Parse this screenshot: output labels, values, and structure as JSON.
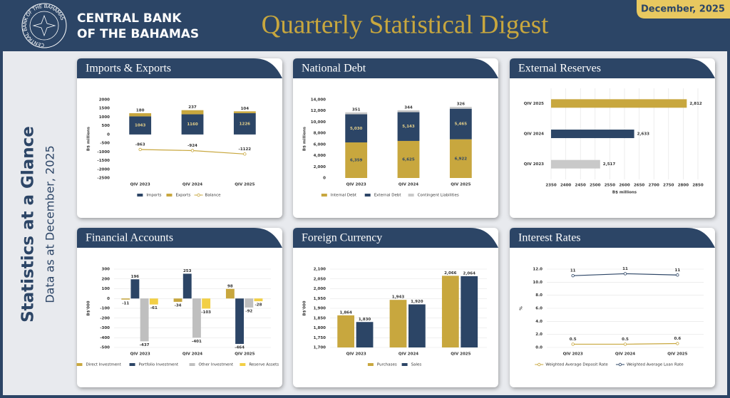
{
  "header": {
    "bank_line1": "CENTRAL BANK",
    "bank_line2": "OF THE BAHAMAS",
    "seal_text": "CENTRAL BANK OF THE BAHAMAS",
    "title": "Quarterly Statistical Digest",
    "date": "December, 2025"
  },
  "side": {
    "title": "Statistics at a Glance",
    "subtitle": "Data as at December, 2025"
  },
  "chart_data": [
    {
      "type": "bar",
      "title": "Imports & Exports",
      "stacked": true,
      "grid": false,
      "ylabel": "B$ millions",
      "categories": [
        "QIV 2023",
        "QIV 2024",
        "QIV 2025"
      ],
      "series": [
        {
          "name": "Imports",
          "color": "#2c4566",
          "values": [
            1043,
            1160,
            1226
          ]
        },
        {
          "name": "Exports",
          "color": "#c8a73e",
          "values": [
            180,
            237,
            104
          ]
        },
        {
          "name": "Balance",
          "type": "line",
          "color": "#c8a73e",
          "values": [
            -863,
            -924,
            -1122
          ]
        }
      ],
      "ylim": [
        -2500,
        2000
      ],
      "yticks": [
        -2500,
        -2000,
        -1500,
        -1000,
        -500,
        0,
        500,
        1000,
        1500,
        2000
      ]
    },
    {
      "type": "bar",
      "title": "National Debt",
      "stacked": true,
      "grid": false,
      "ylabel": "B$ millions",
      "categories": [
        "QIV 2023",
        "QIV 2024",
        "QIV 2025"
      ],
      "series": [
        {
          "name": "Internal Debt",
          "color": "#c8a73e",
          "values": [
            6359,
            6625,
            6922
          ],
          "value_labels": [
            "6,359",
            "6,625",
            "6,922"
          ]
        },
        {
          "name": "External Debt",
          "color": "#2c4566",
          "values": [
            5030,
            5143,
            5465
          ],
          "value_labels": [
            "5,030",
            "5,143",
            "5,465"
          ]
        },
        {
          "name": "Contingent Liabilities",
          "color": "#c9c9c9",
          "values": [
            351,
            344,
            326
          ]
        }
      ],
      "ylim": [
        0,
        14000
      ],
      "yticks": [
        0,
        {
          "value": 2000,
          "label": "2,000"
        },
        {
          "value": 4000,
          "label": "4,000"
        },
        {
          "value": 6000,
          "label": "6,000"
        },
        {
          "value": 8000,
          "label": "8,000"
        },
        {
          "value": 10000,
          "label": "10,000"
        },
        {
          "value": 12000,
          "label": "12,000"
        },
        {
          "value": 14000,
          "label": "14,000"
        }
      ]
    },
    {
      "type": "bar",
      "title": "External Reserves",
      "orientation": "horizontal",
      "grid": true,
      "xlabel": "B$ millions",
      "categories": [
        "QIV 2025",
        "QIV 2024",
        "QIV 2023"
      ],
      "values": [
        2812,
        2633,
        2517
      ],
      "value_labels": [
        "2,812",
        "2,633",
        "2,517"
      ],
      "colors": [
        "#c8a73e",
        "#2c4566",
        "#c9c9c9"
      ],
      "xlim": [
        2350,
        2850
      ],
      "xticks": [
        2350,
        2400,
        2450,
        2500,
        2550,
        2600,
        2650,
        2700,
        2750,
        2800,
        2850
      ]
    },
    {
      "type": "bar",
      "title": "Financial Accounts",
      "stacked": false,
      "grid": true,
      "ylabel": "B$'000",
      "categories": [
        "QIV 2023",
        "QIV 2024",
        "QIV 2025"
      ],
      "series": [
        {
          "name": "Direct Investment",
          "color": "#c8a73e",
          "values": [
            -11,
            -34,
            98
          ]
        },
        {
          "name": "Portfolio Investment",
          "color": "#2c4566",
          "values": [
            196,
            253,
            -464
          ]
        },
        {
          "name": "Other Investment",
          "color": "#bfbfbf",
          "values": [
            -437,
            -401,
            -92
          ]
        },
        {
          "name": "Reserve Assets",
          "color": "#f2cf45",
          "values": [
            -61,
            -103,
            -28
          ]
        }
      ],
      "ylim": [
        -500,
        300
      ],
      "yticks": [
        -500,
        -400,
        -300,
        -200,
        -100,
        0,
        100,
        200,
        300
      ]
    },
    {
      "type": "bar",
      "title": "Foreign Currency",
      "stacked": false,
      "grid": true,
      "ylabel": "B$'000",
      "categories": [
        "QIV 2023",
        "QIV 2024",
        "QIV 2025"
      ],
      "series": [
        {
          "name": "Purchases",
          "color": "#c8a73e",
          "values": [
            1864,
            1943,
            2066
          ],
          "value_labels": [
            "1,864",
            "1,943",
            "2,066"
          ]
        },
        {
          "name": "Sales",
          "color": "#2c4566",
          "values": [
            1830,
            1920,
            2064
          ],
          "value_labels": [
            "1,830",
            "1,920",
            "2,064"
          ]
        }
      ],
      "ylim": [
        1700,
        2100
      ],
      "yticks": [
        {
          "value": 1700,
          "label": "1,700"
        },
        {
          "value": 1750,
          "label": "1,750"
        },
        {
          "value": 1800,
          "label": "1,800"
        },
        {
          "value": 1850,
          "label": "1,850"
        },
        {
          "value": 1900,
          "label": "1,900"
        },
        {
          "value": 1950,
          "label": "1,950"
        },
        {
          "value": 2000,
          "label": "2,000"
        },
        {
          "value": 2050,
          "label": "2,050"
        },
        {
          "value": 2100,
          "label": "2,100"
        }
      ]
    },
    {
      "type": "line",
      "title": "Interest Rates",
      "grid": true,
      "ylabel": "%",
      "categories": [
        "QIV 2023",
        "QIV 2024",
        "QIV 2025"
      ],
      "series": [
        {
          "name": "Weighted Average Deposit Rate",
          "color": "#c8a73e",
          "values": [
            0.5,
            0.5,
            0.6
          ]
        },
        {
          "name": "Weighted Average Loan Rate",
          "color": "#2c4566",
          "values": [
            11.0,
            11.3,
            11.1
          ],
          "value_labels": [
            "11",
            "11",
            "11"
          ]
        }
      ],
      "ylim": [
        0,
        12
      ],
      "yticks": [
        {
          "value": 0,
          "label": "0.0"
        },
        {
          "value": 2,
          "label": "2.0"
        },
        {
          "value": 4,
          "label": "4.0"
        },
        {
          "value": 6,
          "label": "6.0"
        },
        {
          "value": 8,
          "label": "8.0"
        },
        {
          "value": 10,
          "label": "10.0"
        },
        {
          "value": 12,
          "label": "12.0"
        }
      ]
    }
  ]
}
